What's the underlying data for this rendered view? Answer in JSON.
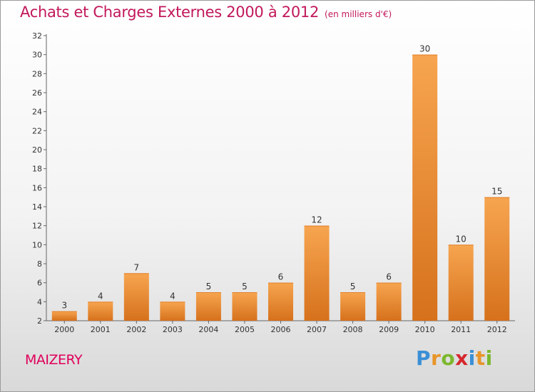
{
  "title": "Achats et Charges Externes 2000 à 2012",
  "unit": "(en milliers d'€)",
  "commune": "MAIZERY",
  "logo": {
    "letters": [
      "P",
      "r",
      "o",
      "x",
      "i",
      "t",
      "i"
    ],
    "colors": [
      "#3a8fd6",
      "#e8952a",
      "#7cb82f",
      "#d6282e",
      "#3a8fd6",
      "#e8952a",
      "#7cb82f"
    ]
  },
  "colors": {
    "bar_light": "#f5a04a",
    "bar_dark": "#d9741f",
    "title": "#c2185b"
  },
  "chart_data": {
    "type": "bar",
    "title": "Achats et Charges Externes 2000 à 2012",
    "subtitle": "(en milliers d'€)",
    "categories": [
      "2000",
      "2001",
      "2002",
      "2003",
      "2004",
      "2005",
      "2006",
      "2007",
      "2008",
      "2009",
      "2010",
      "2011",
      "2012"
    ],
    "values": [
      3,
      4,
      7,
      4,
      5,
      5,
      6,
      12,
      5,
      6,
      30,
      10,
      15
    ],
    "ylim": [
      2,
      32
    ],
    "yticks": [
      2,
      4,
      6,
      8,
      10,
      12,
      14,
      16,
      18,
      20,
      22,
      24,
      26,
      28,
      30,
      32
    ],
    "grid": false,
    "xlabel": "",
    "ylabel": ""
  }
}
